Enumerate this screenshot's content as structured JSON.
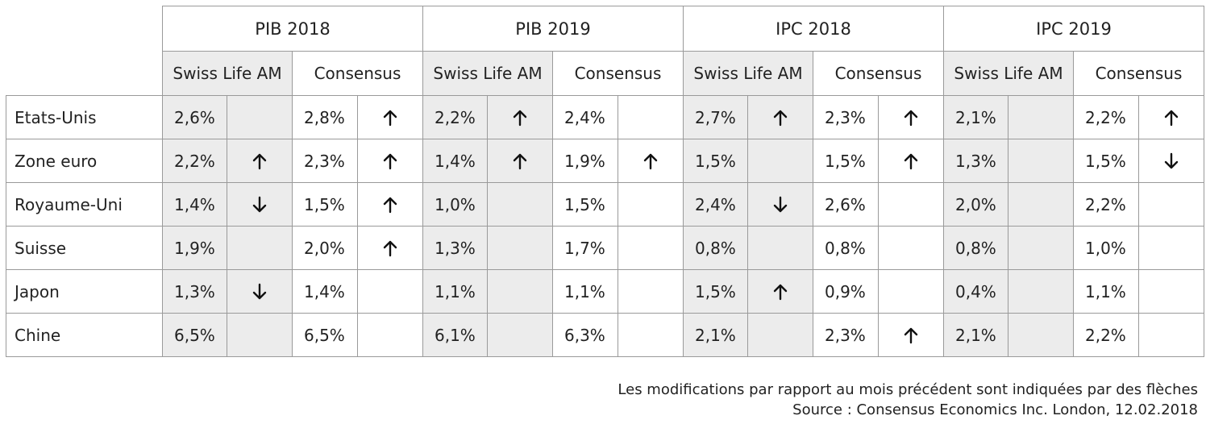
{
  "groups": [
    "PIB 2018",
    "PIB 2019",
    "IPC 2018",
    "IPC 2019"
  ],
  "sub_headers": [
    "Swiss Life AM",
    "Consensus"
  ],
  "rows": [
    {
      "country": "Etats-Unis",
      "cells": [
        {
          "v": "2,6%",
          "a": ""
        },
        {
          "v": "2,8%",
          "a": "up"
        },
        {
          "v": "2,2%",
          "a": "up"
        },
        {
          "v": "2,4%",
          "a": ""
        },
        {
          "v": "2,7%",
          "a": "up"
        },
        {
          "v": "2,3%",
          "a": "up"
        },
        {
          "v": "2,1%",
          "a": ""
        },
        {
          "v": "2,2%",
          "a": "up"
        }
      ]
    },
    {
      "country": "Zone euro",
      "cells": [
        {
          "v": "2,2%",
          "a": "up"
        },
        {
          "v": "2,3%",
          "a": "up"
        },
        {
          "v": "1,4%",
          "a": "up"
        },
        {
          "v": "1,9%",
          "a": "up"
        },
        {
          "v": "1,5%",
          "a": ""
        },
        {
          "v": "1,5%",
          "a": "up"
        },
        {
          "v": "1,3%",
          "a": ""
        },
        {
          "v": "1,5%",
          "a": "down"
        }
      ]
    },
    {
      "country": "Royaume-Uni",
      "cells": [
        {
          "v": "1,4%",
          "a": "down"
        },
        {
          "v": "1,5%",
          "a": "up"
        },
        {
          "v": "1,0%",
          "a": ""
        },
        {
          "v": "1,5%",
          "a": ""
        },
        {
          "v": "2,4%",
          "a": "down"
        },
        {
          "v": "2,6%",
          "a": ""
        },
        {
          "v": "2,0%",
          "a": ""
        },
        {
          "v": "2,2%",
          "a": ""
        }
      ]
    },
    {
      "country": "Suisse",
      "cells": [
        {
          "v": "1,9%",
          "a": ""
        },
        {
          "v": "2,0%",
          "a": "up"
        },
        {
          "v": "1,3%",
          "a": ""
        },
        {
          "v": "1,7%",
          "a": ""
        },
        {
          "v": "0,8%",
          "a": ""
        },
        {
          "v": "0,8%",
          "a": ""
        },
        {
          "v": "0,8%",
          "a": ""
        },
        {
          "v": "1,0%",
          "a": ""
        }
      ]
    },
    {
      "country": "Japon",
      "cells": [
        {
          "v": "1,3%",
          "a": "down"
        },
        {
          "v": "1,4%",
          "a": ""
        },
        {
          "v": "1,1%",
          "a": ""
        },
        {
          "v": "1,1%",
          "a": ""
        },
        {
          "v": "1,5%",
          "a": "up"
        },
        {
          "v": "0,9%",
          "a": ""
        },
        {
          "v": "0,4%",
          "a": ""
        },
        {
          "v": "1,1%",
          "a": ""
        }
      ]
    },
    {
      "country": "Chine",
      "cells": [
        {
          "v": "6,5%",
          "a": ""
        },
        {
          "v": "6,5%",
          "a": ""
        },
        {
          "v": "6,1%",
          "a": ""
        },
        {
          "v": "6,3%",
          "a": ""
        },
        {
          "v": "2,1%",
          "a": ""
        },
        {
          "v": "2,3%",
          "a": "up"
        },
        {
          "v": "2,1%",
          "a": ""
        },
        {
          "v": "2,2%",
          "a": ""
        }
      ]
    }
  ],
  "icons": {
    "up": "arrow-up-icon",
    "down": "arrow-down-icon"
  },
  "colors": {
    "swiss_life_bg": "#ececec",
    "consensus_bg": "#ffffff",
    "border": "#9a9a9a"
  },
  "footer": {
    "note": "Les modifications par rapport au mois précédent sont indiquées par des flèches",
    "source": "Source : Consensus Economics Inc. London, 12.02.2018"
  }
}
